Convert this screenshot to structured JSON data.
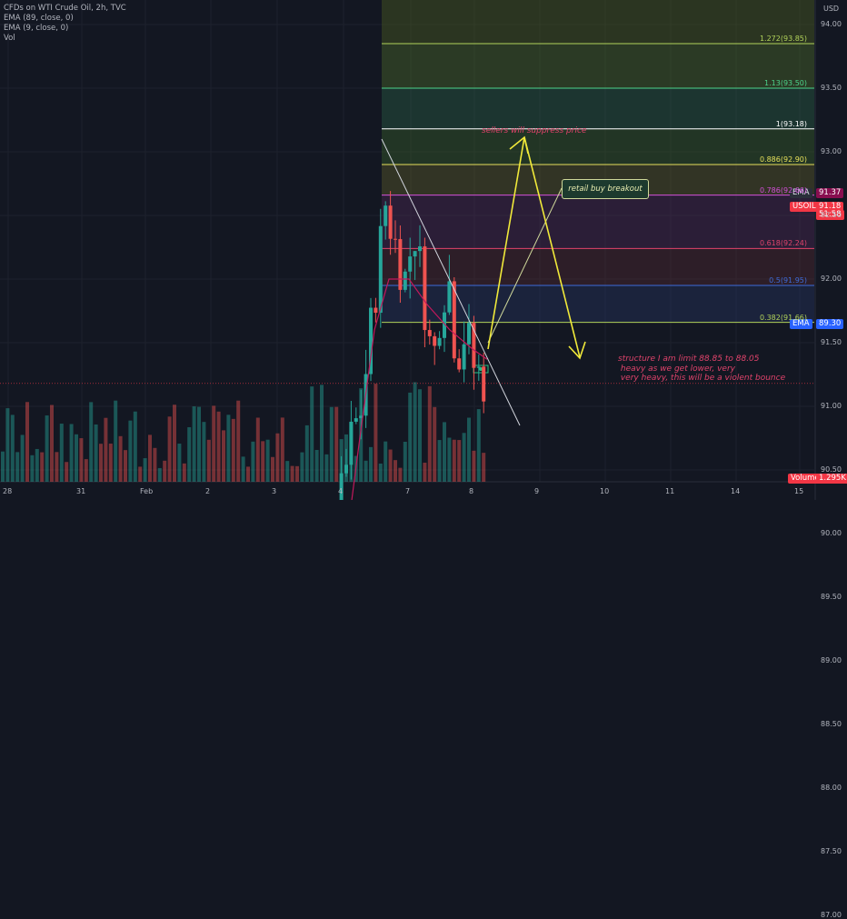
{
  "legend": {
    "title": "CFDs on WTI Crude Oil, 2h, TVC",
    "ema1": "EMA (89, close, 0)",
    "ema2": "EMA (9, close, 0)",
    "vol": "Vol"
  },
  "annotations": {
    "sellers": "sellers will suppress price",
    "retail": "retail buy breakout",
    "structure": "structure I am limit 88.85 to 88.05\n heavy as we get lower, very\n very heavy, this will be a violent bounce"
  },
  "price_scale": {
    "currency": "USD",
    "ticks": [
      "94.00",
      "93.50",
      "93.00",
      "92.50",
      "92.00",
      "91.50",
      "91.00",
      "90.50",
      "90.00",
      "89.50",
      "89.00",
      "88.50",
      "88.00",
      "87.50",
      "87.00"
    ]
  },
  "time_scale": {
    "ticks": [
      "28",
      "31",
      "Feb",
      "2",
      "3",
      "4",
      "7",
      "8",
      "9",
      "10",
      "11",
      "14",
      "15"
    ]
  },
  "tags": {
    "ema_label": "EMA",
    "ema_fast_value": "91.37",
    "symbol": "USOIL",
    "last_price": "91.18",
    "countdown": "51:58",
    "ema_slow_value": "89.30",
    "volume_label": "Volume",
    "volume_value": "1.295K"
  },
  "fib_labels": [
    {
      "text": "1.272(93.85)",
      "color": "#b2d35a"
    },
    {
      "text": "1.13(93.50)",
      "color": "#4cd38a"
    },
    {
      "text": "1(93.18)",
      "color": "#ffffff"
    },
    {
      "text": "0.886(92.90)",
      "color": "#e6e05a"
    },
    {
      "text": "0.786(92.66)",
      "color": "#d24fd8"
    },
    {
      "text": "0.618(92.24)",
      "color": "#e0436b"
    },
    {
      "text": "0.5(91.95)",
      "color": "#3d6bd8"
    },
    {
      "text": "0.382(91.66)",
      "color": "#b2d35a"
    }
  ],
  "colors": {
    "background": "#131722",
    "up": "#26a69a",
    "down": "#ef5350",
    "ema_fast": "#c2185b",
    "ema_slow": "#2962ff",
    "arrow": "#f0e93a"
  },
  "chart_data": {
    "type": "candlestick",
    "title": "CFDs on WTI Crude Oil, 2h, TVC",
    "ylim": [
      86.9,
      94.2
    ],
    "fib_levels": [
      93.85,
      93.5,
      93.18,
      92.9,
      92.66,
      92.24,
      91.95,
      91.66
    ],
    "structure_zone": [
      88.85,
      88.05
    ],
    "ema_fast_last": 91.37,
    "ema_slow_last": 89.3,
    "last_price": 91.18,
    "series": [
      {
        "name": "EMA (89, close, 0)",
        "values": []
      },
      {
        "name": "EMA (9, close, 0)",
        "values": []
      }
    ]
  }
}
